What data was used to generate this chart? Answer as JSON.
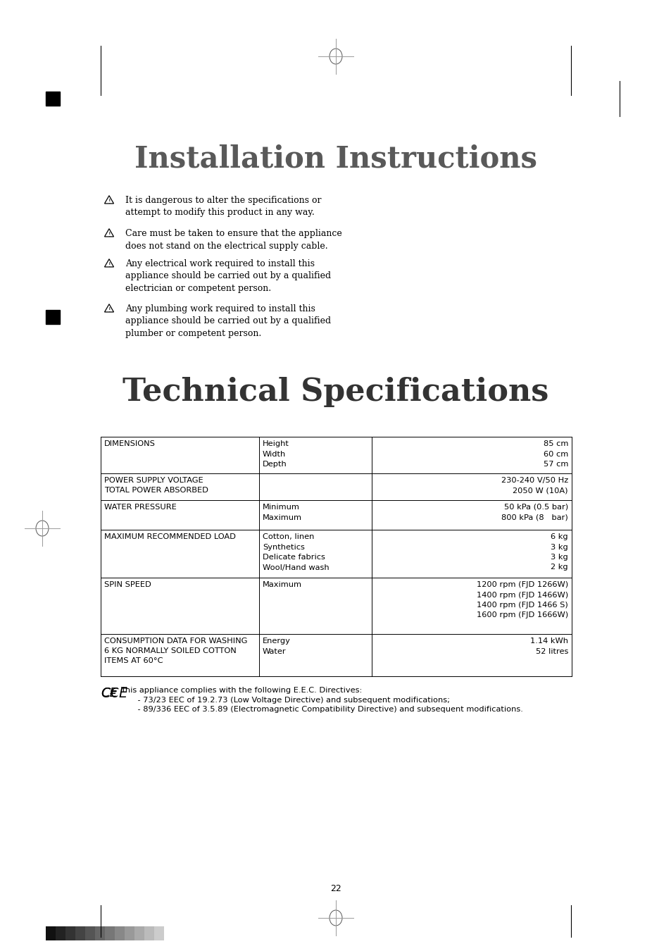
{
  "bg_color": "#ffffff",
  "title1": "Installation Instructions",
  "title2": "Technical Specifications",
  "title1_color": "#595959",
  "title2_color": "#333333",
  "warning_items": [
    "It is dangerous to alter the specifications or\nattempt to modify this product in any way.",
    "Care must be taken to ensure that the appliance\ndoes not stand on the electrical supply cable.",
    "Any electrical work required to install this\nappliance should be carried out by a qualified\nelectrician or competent person.",
    "Any plumbing work required to install this\nappliance should be carried out by a qualified\nplumber or competent person."
  ],
  "row_data": [
    {
      "col1": "DIMENSIONS",
      "col2": [
        "Height",
        "Width",
        "Depth"
      ],
      "col3": [
        "85 cm",
        "60 cm",
        "57 cm"
      ]
    },
    {
      "col1": "POWER SUPPLY VOLTAGE\nTOTAL POWER ABSORBED",
      "col2": [],
      "col3": [
        "230-240 V/50 Hz",
        "2050 W (10A)"
      ]
    },
    {
      "col1": "WATER PRESSURE",
      "col2": [
        "Minimum",
        "Maximum"
      ],
      "col3": [
        "50 kPa (0.5 bar)",
        "800 kPa (8   bar)"
      ]
    },
    {
      "col1": "MAXIMUM RECOMMENDED LOAD",
      "col2": [
        "Cotton, linen",
        "Synthetics",
        "Delicate fabrics",
        "Wool/Hand wash"
      ],
      "col3": [
        "6 kg",
        "3 kg",
        "3 kg",
        "2 kg"
      ]
    },
    {
      "col1": "SPIN SPEED",
      "col2": [
        "Maximum"
      ],
      "col3": [
        "1200 rpm (FJD 1266W)",
        "1400 rpm (FJD 1466W)",
        "1400 rpm (FJD 1466 S)",
        "1600 rpm (FJD 1666W)"
      ]
    },
    {
      "col1": "CONSUMPTION DATA FOR WASHING\n6 KG NORMALLY SOILED COTTON\nITEMS AT 60°C",
      "col2": [
        "Energy",
        "Water"
      ],
      "col3": [
        "1.14 kWh",
        "52 litres"
      ]
    }
  ],
  "ce_text1": "This appliance complies with the following E.E.C. Directives:",
  "ce_text2": "    - 73/23 EEC of 19.2.73 (Low Voltage Directive) and subsequent modifications;",
  "ce_text3": "    - 89/336 EEC of 3.5.89 (Electromagnetic Compatibility Directive) and subsequent modifications.",
  "page_number": "22",
  "barcode_colors": [
    "#111111",
    "#222222",
    "#333333",
    "#444444",
    "#555555",
    "#666666",
    "#777777",
    "#888888",
    "#999999",
    "#aaaaaa",
    "#bbbbbb",
    "#cccccc"
  ]
}
